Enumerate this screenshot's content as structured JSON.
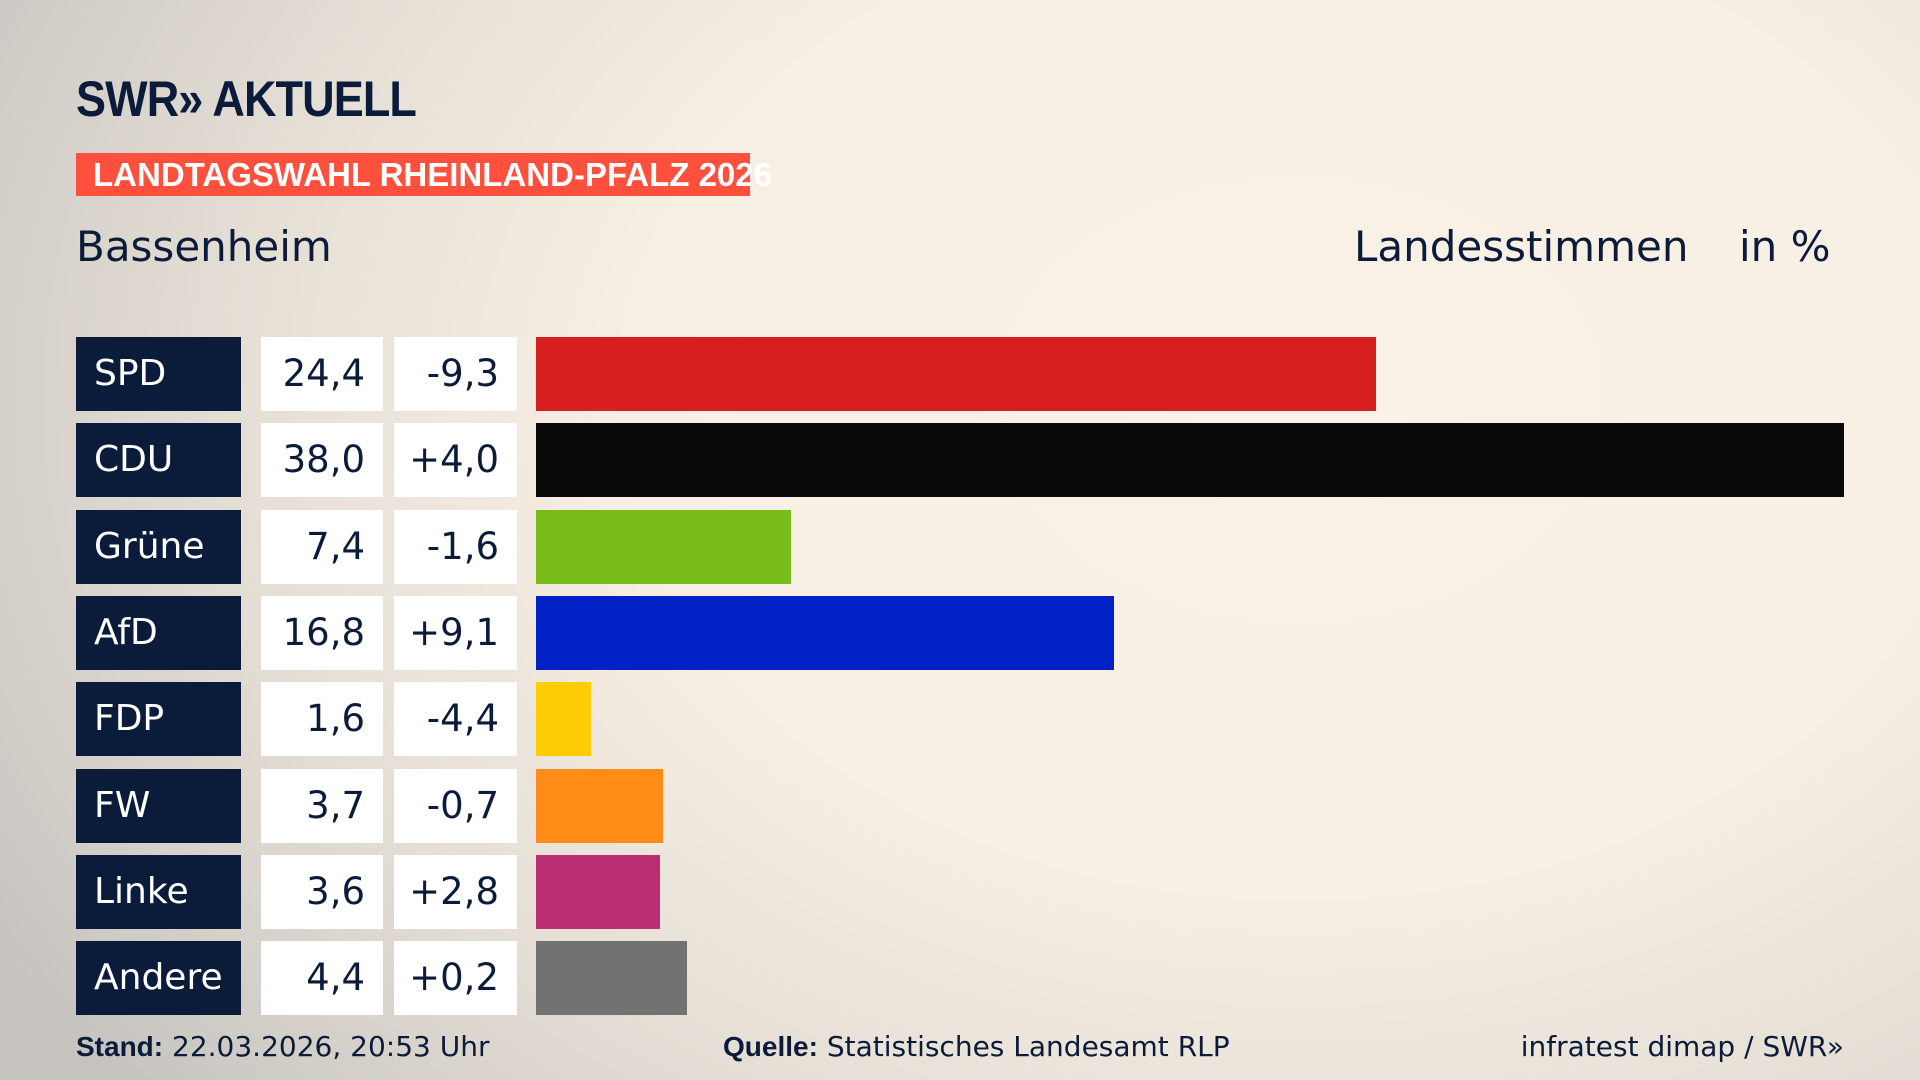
{
  "header": {
    "logo": "SWR» AKTUELL",
    "banner": "LANDTAGSWAHL RHEINLAND-PFALZ 2026",
    "place": "Bassenheim",
    "vote_type": "Landesstimmen",
    "unit": "in %"
  },
  "chart_data": {
    "type": "bar",
    "orientation": "horizontal",
    "xlim": [
      0,
      38
    ],
    "categories": [
      "SPD",
      "CDU",
      "Grüne",
      "AfD",
      "FDP",
      "FW",
      "Linke",
      "Andere"
    ],
    "values": [
      24.4,
      38.0,
      7.4,
      16.8,
      1.6,
      3.7,
      3.6,
      4.4
    ],
    "value_labels": [
      "24,4",
      "38,0",
      "7,4",
      "16,8",
      "1,6",
      "3,7",
      "3,6",
      "4,4"
    ],
    "diff_labels": [
      "-9,3",
      "+4,0",
      "-1,6",
      "+9,1",
      "-4,4",
      "-0,7",
      "+2,8",
      "+0,2"
    ],
    "colors": [
      "#d81f20",
      "#0a0a0a",
      "#78bc1b",
      "#0120c5",
      "#ffcd06",
      "#ff8c16",
      "#bb2e74",
      "#727272"
    ]
  },
  "footer": {
    "stand_label": "Stand:",
    "stand_value": "22.03.2026, 20:53 Uhr",
    "source_label": "Quelle:",
    "source_value": "Statistisches Landesamt RLP",
    "credit": "infratest dimap / SWR»"
  }
}
